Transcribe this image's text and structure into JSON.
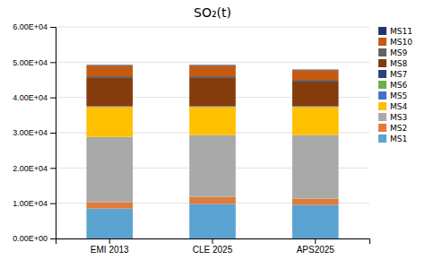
{
  "chart_data": {
    "type": "bar",
    "stacked": true,
    "title": "SO₂(t)",
    "categories": [
      "EMI 2013",
      "CLE 2025",
      "APS2025"
    ],
    "series": [
      {
        "name": "MS1",
        "color": "#5BA3D0",
        "values": [
          8500,
          9800,
          9500
        ]
      },
      {
        "name": "MS2",
        "color": "#E07B39",
        "values": [
          1800,
          2000,
          1800
        ]
      },
      {
        "name": "MS3",
        "color": "#A9A9A9",
        "values": [
          18500,
          17500,
          18000
        ]
      },
      {
        "name": "MS4",
        "color": "#FFC000",
        "values": [
          8500,
          8000,
          8000
        ]
      },
      {
        "name": "MS5",
        "color": "#4472C4",
        "values": [
          100,
          100,
          100
        ]
      },
      {
        "name": "MS6",
        "color": "#70AD47",
        "values": [
          50,
          50,
          50
        ]
      },
      {
        "name": "MS7",
        "color": "#264478",
        "values": [
          50,
          50,
          50
        ]
      },
      {
        "name": "MS8",
        "color": "#843C0C",
        "values": [
          8000,
          8000,
          7000
        ]
      },
      {
        "name": "MS9",
        "color": "#636363",
        "values": [
          500,
          500,
          500
        ]
      },
      {
        "name": "MS10",
        "color": "#C55A11",
        "values": [
          3000,
          3000,
          2700
        ]
      },
      {
        "name": "MS11",
        "color": "#203864",
        "values": [
          200,
          200,
          200
        ]
      }
    ],
    "ylim": [
      0,
      60000
    ],
    "yticks": [
      {
        "value": 0,
        "label": "0.00E+00"
      },
      {
        "value": 10000,
        "label": "1.00E+04"
      },
      {
        "value": 20000,
        "label": "2.00E+04"
      },
      {
        "value": 30000,
        "label": "3.00E+04"
      },
      {
        "value": 40000,
        "label": "4.00E+04"
      },
      {
        "value": 50000,
        "label": "5.00E+04"
      },
      {
        "value": 60000,
        "label": "6.00E+04"
      }
    ],
    "grid": true,
    "legend": "right"
  }
}
